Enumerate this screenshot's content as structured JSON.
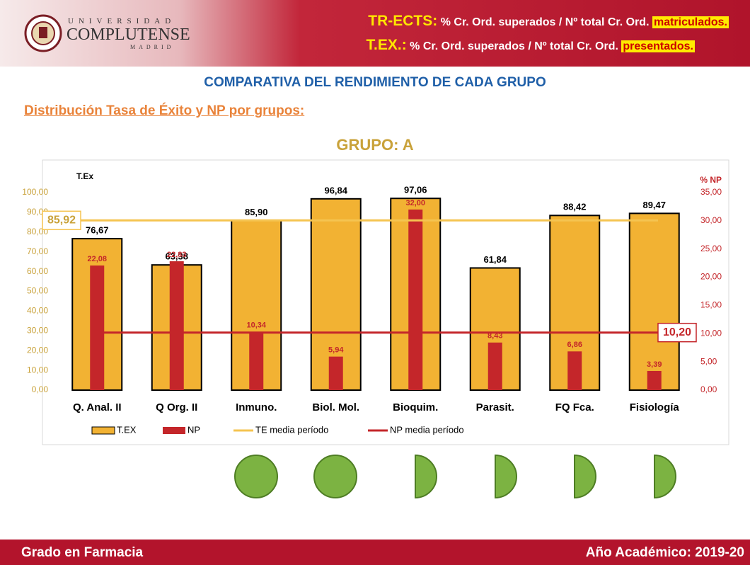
{
  "header": {
    "logo_top": "UNIVERSIDAD",
    "logo_main": "COMPLUTENSE",
    "logo_sub": "MADRID",
    "line1_label": "TR-ECTS:",
    "line1_text": "% Cr. Ord. superados / Nº total Cr. Ord.",
    "line1_highlight": "matriculados.",
    "line2_label": "T.EX.:",
    "line2_text": "% Cr. Ord. superados / Nº total Cr. Ord.",
    "line2_highlight": "presentados."
  },
  "heading": "COMPARATIVA DEL RENDIMIENTO DE CADA GRUPO",
  "subheading": "Distribución Tasa de Éxito y NP por grupos:",
  "chart_data": {
    "type": "bar",
    "title": "GRUPO: A",
    "y_label": "T.Ex",
    "y2_label": "% NP",
    "categories": [
      "Q. Anal. II",
      "Q Org. II",
      "Inmuno.",
      "Biol. Mol.",
      "Bioquim.",
      "Parasit.",
      "FQ Fca.",
      "Fisiología"
    ],
    "series": [
      {
        "name": "T.EX",
        "color": "#f2b233",
        "values": [
          76.67,
          63.38,
          85.9,
          96.84,
          97.06,
          61.84,
          88.42,
          89.47
        ],
        "value_labels": [
          "76,67",
          "63,38",
          "85,90",
          "96,84",
          "97,06",
          "61,84",
          "88,42",
          "89,47"
        ]
      },
      {
        "name": "NP",
        "color": "#c4262a",
        "axis": "y2",
        "values": [
          22.08,
          22.83,
          10.34,
          5.94,
          32.0,
          8.43,
          6.86,
          3.39
        ],
        "value_labels": [
          "22,08",
          "22,83",
          "10,34",
          "5,94",
          "32,00",
          "8,43",
          "6,86",
          "3,39"
        ]
      }
    ],
    "lines": [
      {
        "name": "TE media período",
        "color": "#f5c451",
        "value": 85.92,
        "value_label": "85,92"
      },
      {
        "name": "NP media período",
        "color": "#c4262a",
        "axis": "y2",
        "value": 10.2,
        "value_label": "10,20"
      }
    ],
    "ylim": [
      0,
      100
    ],
    "yticks": [
      {
        "value": 0,
        "label": "0,00"
      },
      {
        "value": 10,
        "label": "10,00"
      },
      {
        "value": 20,
        "label": "20,00"
      },
      {
        "value": 30,
        "label": "30,00"
      },
      {
        "value": 40,
        "label": "40,00"
      },
      {
        "value": 50,
        "label": "50,00"
      },
      {
        "value": 60,
        "label": "60,00"
      },
      {
        "value": 70,
        "label": "70,00"
      },
      {
        "value": 80,
        "label": "80,00"
      },
      {
        "value": 90,
        "label": "90,00"
      },
      {
        "value": 100,
        "label": "100,00"
      }
    ],
    "y2lim": [
      0,
      35
    ],
    "y2ticks": [
      {
        "value": 0,
        "label": "0,00"
      },
      {
        "value": 5,
        "label": "5,00"
      },
      {
        "value": 10,
        "label": "10,00"
      },
      {
        "value": 15,
        "label": "15,00"
      },
      {
        "value": 20,
        "label": "20,00"
      },
      {
        "value": 25,
        "label": "25,00"
      },
      {
        "value": 30,
        "label": "30,00"
      },
      {
        "value": 35,
        "label": "35,00"
      }
    ]
  },
  "footer": {
    "left": "Grado en Farmacia",
    "right": "Año Académico: 2019-20"
  }
}
